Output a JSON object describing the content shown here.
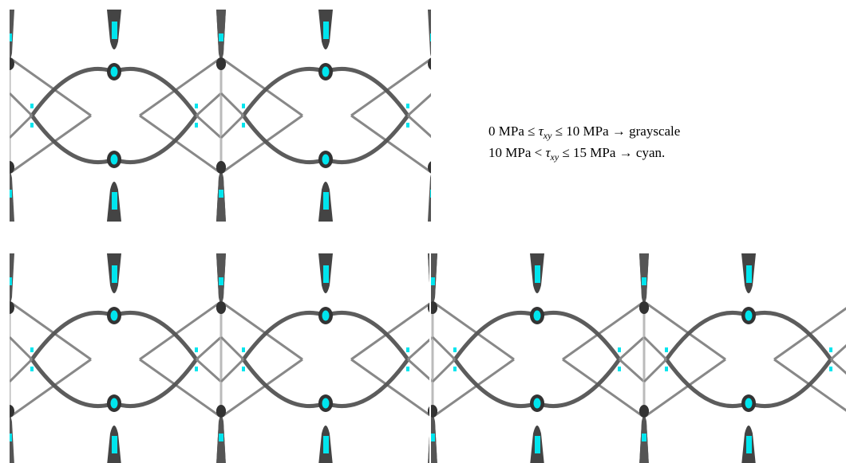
{
  "legend": {
    "lines": [
      {
        "before": "0 MPa ≤ ",
        "symbol": "τ",
        "subscript": "xy",
        "after": " ≤ 10 MPa → grayscale"
      },
      {
        "before": "10 MPa < ",
        "symbol": "τ",
        "subscript": "xy",
        "after": " ≤ 15 MPa → cyan."
      }
    ]
  }
}
